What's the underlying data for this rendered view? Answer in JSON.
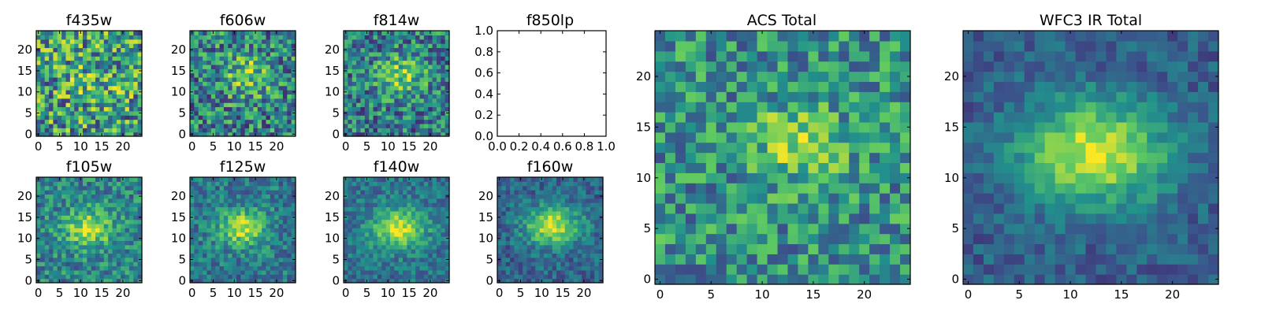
{
  "colormap": [
    "#440154",
    "#3b528b",
    "#21918c",
    "#5ec962",
    "#fde725"
  ],
  "chart_data": [
    {
      "type": "heatmap",
      "title": "f435w",
      "grid": 25,
      "xticks": [
        0,
        5,
        10,
        15,
        20
      ],
      "yticks": [
        0,
        5,
        10,
        15,
        20
      ],
      "noise": 0.5,
      "center": [
        13,
        13
      ],
      "sigma": [
        5,
        4
      ],
      "peak": 0.1,
      "base": 0.55,
      "seed": 11
    },
    {
      "type": "heatmap",
      "title": "f606w",
      "grid": 25,
      "xticks": [
        0,
        5,
        10,
        15,
        20
      ],
      "yticks": [
        0,
        5,
        10,
        15,
        20
      ],
      "noise": 0.42,
      "center": [
        13,
        14
      ],
      "sigma": [
        4,
        3.5
      ],
      "peak": 0.3,
      "base": 0.45,
      "seed": 23
    },
    {
      "type": "heatmap",
      "title": "f814w",
      "grid": 25,
      "xticks": [
        0,
        5,
        10,
        15,
        20
      ],
      "yticks": [
        0,
        5,
        10,
        15,
        20
      ],
      "noise": 0.38,
      "center": [
        13,
        14
      ],
      "sigma": [
        4,
        3.5
      ],
      "peak": 0.35,
      "base": 0.42,
      "seed": 37
    },
    {
      "type": "empty",
      "title": "f850lp",
      "xlim": [
        0,
        1
      ],
      "ylim": [
        0,
        1
      ],
      "xticks": [
        0.0,
        0.2,
        0.4,
        0.6,
        0.8,
        1.0
      ],
      "yticks": [
        0.0,
        0.2,
        0.4,
        0.6,
        0.8,
        1.0
      ],
      "xticklabels": [
        "0.0",
        "0.2",
        "0.4",
        "0.6",
        "0.8",
        "1.0"
      ],
      "yticklabels": [
        "0.0",
        "0.2",
        "0.4",
        "0.6",
        "0.8",
        "1.0"
      ]
    },
    {
      "type": "heatmap",
      "title": "f105w",
      "grid": 25,
      "xticks": [
        0,
        5,
        10,
        15,
        20
      ],
      "yticks": [
        0,
        5,
        10,
        15,
        20
      ],
      "noise": 0.28,
      "center": [
        12,
        12.5
      ],
      "sigma": [
        4,
        3
      ],
      "peak": 0.45,
      "base": 0.45,
      "seed": 41
    },
    {
      "type": "heatmap",
      "title": "f125w",
      "grid": 25,
      "xticks": [
        0,
        5,
        10,
        15,
        20
      ],
      "yticks": [
        0,
        5,
        10,
        15,
        20
      ],
      "noise": 0.24,
      "center": [
        12,
        12.5
      ],
      "sigma": [
        4,
        3
      ],
      "peak": 0.5,
      "base": 0.4,
      "seed": 53
    },
    {
      "type": "heatmap",
      "title": "f140w",
      "grid": 25,
      "xticks": [
        0,
        5,
        10,
        15,
        20
      ],
      "yticks": [
        0,
        5,
        10,
        15,
        20
      ],
      "noise": 0.2,
      "center": [
        12.5,
        12.5
      ],
      "sigma": [
        4.5,
        3.2
      ],
      "peak": 0.55,
      "base": 0.38,
      "seed": 67
    },
    {
      "type": "heatmap",
      "title": "f160w",
      "grid": 25,
      "xticks": [
        0,
        5,
        10,
        15,
        20
      ],
      "yticks": [
        0,
        5,
        10,
        15,
        20
      ],
      "noise": 0.2,
      "center": [
        12.5,
        13
      ],
      "sigma": [
        4.5,
        3.2
      ],
      "peak": 0.6,
      "base": 0.33,
      "seed": 79
    },
    {
      "type": "heatmap",
      "title": "ACS Total",
      "grid": 25,
      "xticks": [
        0,
        5,
        10,
        15,
        20
      ],
      "yticks": [
        0,
        5,
        10,
        15,
        20
      ],
      "noise": 0.34,
      "center": [
        13.5,
        13.5
      ],
      "sigma": [
        3,
        2.5
      ],
      "peak": 0.35,
      "base": 0.5,
      "seed": 97
    },
    {
      "type": "heatmap",
      "title": "WFC3 IR Total",
      "grid": 25,
      "xticks": [
        0,
        5,
        10,
        15,
        20
      ],
      "yticks": [
        0,
        5,
        10,
        15,
        20
      ],
      "noise": 0.16,
      "center": [
        12.5,
        12.5
      ],
      "sigma": [
        5,
        3.5
      ],
      "peak": 0.65,
      "base": 0.3,
      "seed": 101
    }
  ]
}
